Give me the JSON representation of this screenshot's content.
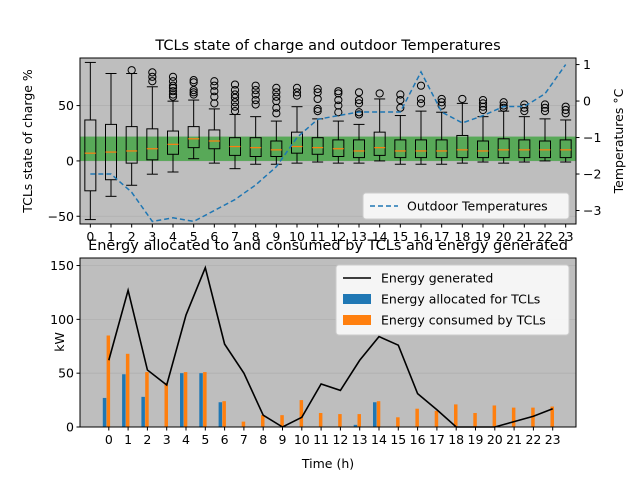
{
  "chart_data": [
    {
      "type": "boxplot",
      "title": "TCLs state of charge and outdoor Temperatures",
      "ylabel": "TCLs state of charge %",
      "y2label": "Temperatures °C",
      "ylim": [
        -57,
        93
      ],
      "y2lim": [
        -3.37,
        1.18
      ],
      "yticks": [
        -50,
        0,
        50
      ],
      "y2ticks": [
        -3,
        -2,
        -1,
        0,
        1
      ],
      "categories": [
        "0",
        "1",
        "2",
        "3",
        "4",
        "5",
        "6",
        "7",
        "8",
        "9",
        "10",
        "11",
        "12",
        "13",
        "14",
        "15",
        "16",
        "17",
        "18",
        "19",
        "20",
        "21",
        "22",
        "23"
      ],
      "band": {
        "low": 0,
        "high": 22,
        "color": "#2ca02c"
      },
      "box_color": "#000000",
      "median_color": "#ff7f0e",
      "background": "#bebebe",
      "legend_position": "lower-right",
      "boxes": [
        {
          "whislo": -53,
          "q1": -27,
          "med": 7,
          "q3": 37,
          "whishi": 89,
          "fliers": []
        },
        {
          "whislo": -32,
          "q1": -17,
          "med": 8,
          "q3": 33,
          "whishi": 79,
          "fliers": []
        },
        {
          "whislo": -22,
          "q1": -2,
          "med": 9,
          "q3": 31,
          "whishi": 79,
          "fliers": [
            82
          ]
        },
        {
          "whislo": -12,
          "q1": 1,
          "med": 11,
          "q3": 29,
          "whishi": 67,
          "fliers": [
            72,
            76,
            80
          ]
        },
        {
          "whislo": -10,
          "q1": 6,
          "med": 15,
          "q3": 27,
          "whishi": 54,
          "fliers": [
            58,
            60,
            63,
            66,
            68,
            72,
            76
          ]
        },
        {
          "whislo": 2,
          "q1": 12,
          "med": 20,
          "q3": 31,
          "whishi": 55,
          "fliers": [
            60,
            62,
            64,
            71,
            73
          ]
        },
        {
          "whislo": -2,
          "q1": 11,
          "med": 18,
          "q3": 28,
          "whishi": 47,
          "fliers": [
            52,
            58,
            63,
            68,
            72
          ]
        },
        {
          "whislo": -7,
          "q1": 5,
          "med": 13,
          "q3": 21,
          "whishi": 42,
          "fliers": [
            45,
            49,
            53,
            57,
            60,
            64,
            69
          ]
        },
        {
          "whislo": -3,
          "q1": 4,
          "med": 12,
          "q3": 21,
          "whishi": 40,
          "fliers": [
            51,
            55,
            60,
            64,
            68
          ]
        },
        {
          "whislo": -3,
          "q1": 4,
          "med": 10,
          "q3": 18,
          "whishi": 36,
          "fliers": [
            43,
            48,
            54,
            58,
            62,
            66
          ]
        },
        {
          "whislo": -2,
          "q1": 7,
          "med": 13,
          "q3": 26,
          "whishi": 49,
          "fliers": [
            59,
            62,
            66
          ]
        },
        {
          "whislo": -1,
          "q1": 6,
          "med": 12,
          "q3": 21,
          "whishi": 38,
          "fliers": [
            45,
            47,
            56,
            62,
            65
          ]
        },
        {
          "whislo": -2,
          "q1": 4,
          "med": 11,
          "q3": 19,
          "whishi": 36,
          "fliers": [
            44,
            50,
            55,
            61,
            63
          ]
        },
        {
          "whislo": -2,
          "q1": 3,
          "med": 9,
          "q3": 19,
          "whishi": 33,
          "fliers": [
            42,
            44,
            52,
            55,
            62
          ]
        },
        {
          "whislo": 0,
          "q1": 5,
          "med": 12,
          "q3": 26,
          "whishi": 56,
          "fliers": [
            61
          ]
        },
        {
          "whislo": -3,
          "q1": 3,
          "med": 9,
          "q3": 19,
          "whishi": 41,
          "fliers": [
            48,
            55,
            60
          ]
        },
        {
          "whislo": -3,
          "q1": 3,
          "med": 9,
          "q3": 19,
          "whishi": 45,
          "fliers": [
            52,
            56,
            68
          ]
        },
        {
          "whislo": -3,
          "q1": 3,
          "med": 9,
          "q3": 19,
          "whishi": 44,
          "fliers": [
            50,
            53,
            56
          ]
        },
        {
          "whislo": -2,
          "q1": 3,
          "med": 10,
          "q3": 23,
          "whishi": 52,
          "fliers": [
            56
          ]
        },
        {
          "whislo": -1,
          "q1": 3,
          "med": 9,
          "q3": 18,
          "whishi": 40,
          "fliers": [
            46,
            49,
            52,
            55
          ]
        },
        {
          "whislo": -2,
          "q1": 3,
          "med": 10,
          "q3": 20,
          "whishi": 45,
          "fliers": [
            48,
            50,
            53
          ]
        },
        {
          "whislo": -1,
          "q1": 3,
          "med": 10,
          "q3": 19,
          "whishi": 40,
          "fliers": [
            45,
            48,
            51
          ]
        },
        {
          "whislo": 0,
          "q1": 3,
          "med": 10,
          "q3": 18,
          "whishi": 38,
          "fliers": [
            45,
            48,
            51
          ]
        },
        {
          "whislo": -1,
          "q1": 3,
          "med": 10,
          "q3": 19,
          "whishi": 37,
          "fliers": [
            43,
            46,
            49
          ]
        }
      ],
      "temperature_series": {
        "name": "Outdoor Temperatures",
        "color": "#1f77b4",
        "values": [
          -2.0,
          -2.0,
          -2.5,
          -3.3,
          -3.2,
          -3.3,
          -3.0,
          -2.7,
          -2.3,
          -1.8,
          -1.0,
          -0.5,
          -0.4,
          -0.3,
          -0.3,
          -0.3,
          0.8,
          -0.3,
          -0.6,
          -0.4,
          -0.15,
          -0.15,
          0.2,
          1.0
        ]
      }
    },
    {
      "type": "bar",
      "title": "Energy allocated to and consumed by TCLs and energy generated",
      "xlabel": "Time (h)",
      "ylabel": "kW",
      "ylim": [
        0,
        157
      ],
      "yticks": [
        0,
        50,
        100,
        150
      ],
      "categories": [
        "0",
        "1",
        "2",
        "3",
        "4",
        "5",
        "6",
        "7",
        "8",
        "9",
        "10",
        "11",
        "12",
        "13",
        "14",
        "15",
        "16",
        "17",
        "18",
        "19",
        "20",
        "21",
        "22",
        "23"
      ],
      "background": "#bebebe",
      "legend_position": "top-right",
      "series": [
        {
          "name": "Energy generated",
          "kind": "line",
          "color": "#000000",
          "values": [
            62,
            127,
            53,
            39,
            104,
            148,
            77,
            50,
            11,
            0,
            9,
            40,
            34,
            62,
            84,
            76,
            31,
            16,
            0,
            0,
            0,
            5,
            10,
            17
          ]
        },
        {
          "name": "Energy allocated for TCLs",
          "kind": "bar",
          "color": "#1f77b4",
          "values": [
            27,
            49,
            28,
            0,
            50,
            50,
            23,
            0,
            0,
            0,
            0,
            0,
            0,
            2,
            23,
            0,
            0,
            0,
            0,
            0,
            0,
            0,
            0,
            0
          ]
        },
        {
          "name": "Energy consumed by TCLs",
          "kind": "bar",
          "color": "#ff7f0e",
          "values": [
            85,
            68,
            51,
            41,
            51,
            51,
            24,
            5,
            11,
            11,
            25,
            13,
            12,
            12,
            24,
            9,
            17,
            15,
            21,
            13,
            20,
            18,
            18,
            19
          ]
        }
      ]
    }
  ]
}
